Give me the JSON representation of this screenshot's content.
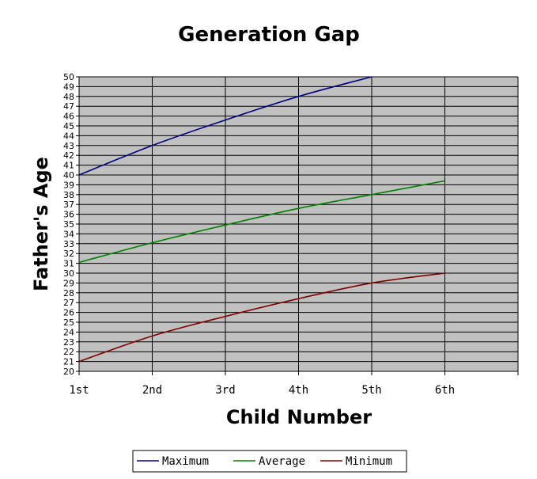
{
  "chart_data": {
    "type": "line",
    "title": "Generation Gap",
    "xlabel": "Child Number",
    "ylabel": "Father's Age",
    "categories": [
      "1st",
      "2nd",
      "3rd",
      "4th",
      "5th",
      "6th",
      ""
    ],
    "ylim": [
      20,
      50
    ],
    "yticks": [
      20,
      21,
      22,
      23,
      24,
      25,
      26,
      27,
      28,
      29,
      30,
      31,
      32,
      33,
      34,
      35,
      36,
      37,
      38,
      39,
      40,
      41,
      42,
      43,
      44,
      45,
      46,
      47,
      48,
      49,
      50
    ],
    "grid": true,
    "plot_background": "#c0c0c0",
    "legend_position": "bottom",
    "series": [
      {
        "name": "Maximum",
        "color": "#000080",
        "values": [
          40,
          43,
          45.6,
          48,
          50,
          null,
          null
        ]
      },
      {
        "name": "Average",
        "color": "#008000",
        "values": [
          31.1,
          33.1,
          34.9,
          36.6,
          38.0,
          39.4,
          null
        ]
      },
      {
        "name": "Minimum",
        "color": "#800000",
        "values": [
          21,
          23.6,
          25.6,
          27.4,
          29,
          30,
          null
        ]
      }
    ]
  }
}
